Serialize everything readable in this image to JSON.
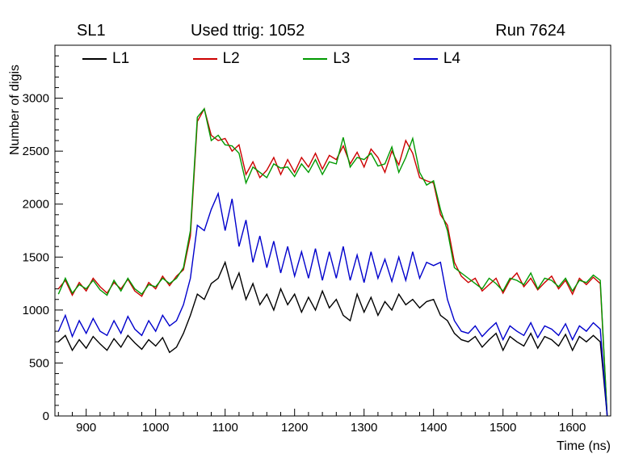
{
  "titles": {
    "left": "SL1",
    "center": "Used ttrig: 1052",
    "right": "Run 7624"
  },
  "axes": {
    "y_label": "Number of digis",
    "x_label": "Time (ns)"
  },
  "chart_data": {
    "type": "line",
    "title": "Used ttrig: 1052",
    "xlabel": "Time (ns)",
    "ylabel": "Number of digis",
    "xlim": [
      855,
      1655
    ],
    "ylim": [
      0,
      3500
    ],
    "x_ticks": [
      900,
      1000,
      1100,
      1200,
      1300,
      1400,
      1500,
      1600
    ],
    "x_minor_step": 20,
    "y_ticks": [
      0,
      500,
      1000,
      1500,
      2000,
      2500,
      3000
    ],
    "y_minor_step": 100,
    "grid": false,
    "legend_position": "top-inside-horizontal",
    "x": [
      860,
      870,
      880,
      890,
      900,
      910,
      920,
      930,
      940,
      950,
      960,
      970,
      980,
      990,
      1000,
      1010,
      1020,
      1030,
      1040,
      1050,
      1060,
      1070,
      1080,
      1090,
      1100,
      1110,
      1120,
      1130,
      1140,
      1150,
      1160,
      1170,
      1180,
      1190,
      1200,
      1210,
      1220,
      1230,
      1240,
      1250,
      1260,
      1270,
      1280,
      1290,
      1300,
      1310,
      1320,
      1330,
      1340,
      1350,
      1360,
      1370,
      1380,
      1390,
      1400,
      1410,
      1420,
      1430,
      1440,
      1450,
      1460,
      1470,
      1480,
      1490,
      1500,
      1510,
      1520,
      1530,
      1540,
      1550,
      1560,
      1570,
      1580,
      1590,
      1600,
      1610,
      1620,
      1630,
      1640,
      1650
    ],
    "series": [
      {
        "name": "L1",
        "color": "#000000",
        "values": [
          700,
          760,
          620,
          720,
          640,
          750,
          680,
          620,
          730,
          650,
          760,
          690,
          630,
          720,
          660,
          740,
          600,
          650,
          780,
          950,
          1150,
          1100,
          1250,
          1300,
          1450,
          1200,
          1350,
          1100,
          1250,
          1050,
          1150,
          1000,
          1200,
          1050,
          1150,
          980,
          1120,
          1000,
          1180,
          1020,
          1100,
          950,
          900,
          1150,
          980,
          1120,
          950,
          1080,
          1000,
          1150,
          1050,
          1100,
          1020,
          1080,
          1100,
          950,
          900,
          780,
          720,
          700,
          750,
          650,
          720,
          780,
          620,
          750,
          700,
          660,
          780,
          640,
          750,
          720,
          660,
          770,
          620,
          750,
          700,
          760,
          700,
          0
        ]
      },
      {
        "name": "L2",
        "color": "#cc0000",
        "values": [
          1200,
          1280,
          1140,
          1260,
          1180,
          1300,
          1220,
          1160,
          1260,
          1200,
          1290,
          1180,
          1130,
          1260,
          1200,
          1320,
          1230,
          1320,
          1380,
          1700,
          2780,
          2900,
          2650,
          2600,
          2620,
          2500,
          2560,
          2280,
          2400,
          2250,
          2320,
          2440,
          2280,
          2420,
          2300,
          2440,
          2350,
          2480,
          2330,
          2460,
          2420,
          2550,
          2380,
          2490,
          2350,
          2520,
          2440,
          2300,
          2500,
          2370,
          2600,
          2480,
          2250,
          2220,
          2200,
          1900,
          1800,
          1450,
          1320,
          1260,
          1300,
          1180,
          1240,
          1300,
          1160,
          1280,
          1350,
          1220,
          1300,
          1190,
          1260,
          1320,
          1200,
          1280,
          1150,
          1300,
          1240,
          1310,
          1250,
          0
        ]
      },
      {
        "name": "L3",
        "color": "#009900",
        "values": [
          1150,
          1300,
          1160,
          1240,
          1200,
          1280,
          1190,
          1140,
          1280,
          1180,
          1300,
          1200,
          1150,
          1240,
          1220,
          1300,
          1250,
          1300,
          1400,
          1750,
          2820,
          2900,
          2600,
          2650,
          2560,
          2550,
          2480,
          2200,
          2350,
          2300,
          2250,
          2380,
          2340,
          2350,
          2260,
          2380,
          2300,
          2420,
          2280,
          2400,
          2380,
          2630,
          2350,
          2440,
          2420,
          2480,
          2360,
          2380,
          2540,
          2300,
          2440,
          2620,
          2300,
          2180,
          2220,
          1950,
          1750,
          1400,
          1350,
          1300,
          1250,
          1200,
          1300,
          1250,
          1180,
          1300,
          1280,
          1240,
          1350,
          1200,
          1300,
          1280,
          1220,
          1300,
          1180,
          1280,
          1260,
          1330,
          1280,
          0
        ]
      },
      {
        "name": "L4",
        "color": "#0000cc",
        "values": [
          800,
          950,
          750,
          900,
          780,
          920,
          800,
          760,
          900,
          780,
          940,
          820,
          760,
          900,
          800,
          950,
          850,
          900,
          1050,
          1300,
          1800,
          1750,
          1950,
          2100,
          1750,
          2050,
          1600,
          1850,
          1450,
          1700,
          1400,
          1650,
          1350,
          1600,
          1320,
          1550,
          1300,
          1580,
          1280,
          1550,
          1300,
          1600,
          1280,
          1520,
          1260,
          1550,
          1300,
          1480,
          1270,
          1500,
          1280,
          1550,
          1300,
          1450,
          1420,
          1450,
          1100,
          900,
          800,
          780,
          850,
          750,
          820,
          880,
          720,
          850,
          800,
          760,
          880,
          740,
          850,
          820,
          760,
          870,
          720,
          850,
          800,
          880,
          820,
          0
        ]
      }
    ]
  }
}
